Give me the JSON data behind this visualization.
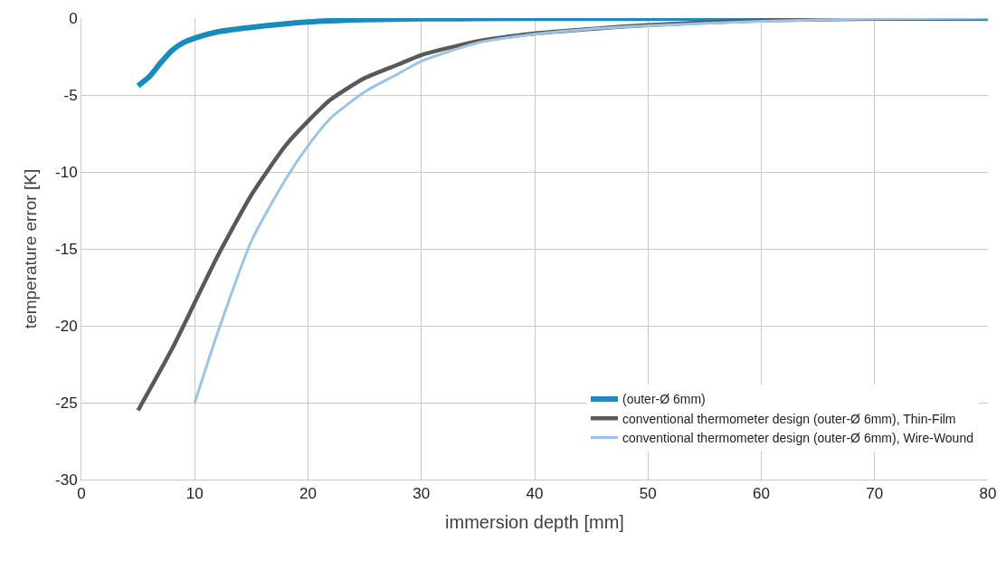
{
  "chart_data": {
    "type": "line",
    "xlabel": "immersion depth [mm]",
    "ylabel": "temperature error [K]",
    "xlim": [
      0,
      80
    ],
    "xticks": [
      0,
      10,
      20,
      30,
      40,
      50,
      60,
      70,
      80
    ],
    "ylim": [
      -30,
      0
    ],
    "yticks": [
      -30,
      -25,
      -20,
      -15,
      -10,
      -5,
      0
    ],
    "grid": true,
    "legend": "bottom right",
    "line_style": "solid",
    "marker": "none",
    "series": [
      {
        "name": "(outer-Ø 6mm)",
        "color": "#1a8bbf",
        "x": [
          5,
          6,
          7,
          8,
          9,
          10,
          12,
          15,
          20,
          25,
          30,
          40,
          50,
          60,
          70,
          80
        ],
        "values": [
          -4.4,
          -3.8,
          -2.9,
          -2.1,
          -1.6,
          -1.3,
          -0.9,
          -0.6,
          -0.25,
          -0.1,
          -0.05,
          -0.02,
          -0.01,
          0,
          0,
          0
        ]
      },
      {
        "name": "conventional thermometer design (outer-Ø 6mm), Thin-Film",
        "color": "#595959",
        "x": [
          5,
          8,
          10,
          12,
          15,
          18,
          20,
          22,
          25,
          28,
          30,
          35,
          40,
          45,
          50,
          60,
          70,
          80
        ],
        "values": [
          -25.5,
          -21.5,
          -18.5,
          -15.5,
          -11.5,
          -8.3,
          -6.7,
          -5.3,
          -3.9,
          -3.0,
          -2.4,
          -1.5,
          -1.0,
          -0.7,
          -0.45,
          -0.15,
          -0.05,
          0
        ]
      },
      {
        "name": "conventional thermometer design (outer-Ø 6mm), Wire-Wound",
        "color": "#9dc3e6",
        "x": [
          10,
          12,
          15,
          18,
          20,
          22,
          25,
          28,
          30,
          35,
          40,
          45,
          50,
          60,
          70,
          80
        ],
        "values": [
          -25,
          -20.5,
          -14.5,
          -10.5,
          -8.3,
          -6.5,
          -4.8,
          -3.6,
          -2.8,
          -1.6,
          -1.05,
          -0.7,
          -0.5,
          -0.2,
          -0.05,
          0
        ]
      }
    ]
  }
}
